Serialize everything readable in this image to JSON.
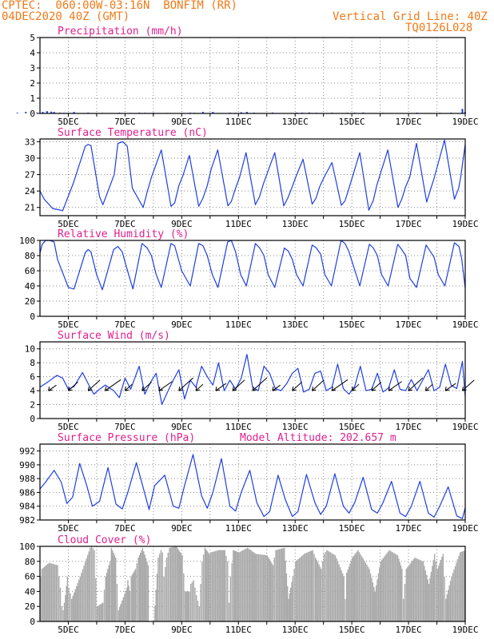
{
  "header": {
    "line1_left": "CPTEC:  060:00W-03:16N  BONFIM (RR)",
    "line2_left": "04DEC2020 40Z (GMT)",
    "line1_right": "Vertical Grid Line: 40Z",
    "line2_right": "TQ0126L028"
  },
  "colors": {
    "header": "#f07a18",
    "panel_title": "#e0208c",
    "series": "#1f3fe0",
    "cloud_fill": "#a9a9a9",
    "wind_arrow": "#000000"
  },
  "chart_data": [
    {
      "id": "precip",
      "type": "bar",
      "title": "Precipitation (mm/h)",
      "ylim": [
        0,
        5
      ],
      "yticks": [
        0,
        1,
        2,
        3,
        4,
        5
      ],
      "xticks": [
        "5DEC",
        "7DEC",
        "9DEC",
        "11DEC",
        "13DEC",
        "15DEC",
        "17DEC",
        "19DEC"
      ],
      "series": [
        {
          "x": [
            3.2,
            3.5,
            3.9,
            4.1,
            4.25,
            4.4,
            4.5,
            4.7,
            4.85,
            5.0,
            5.2,
            5.7,
            6.2,
            6.8,
            7.2,
            7.5,
            7.7,
            7.8,
            8.0,
            8.5,
            9.3,
            9.45,
            9.75,
            10.1,
            10.7,
            10.9,
            11.1,
            11.3,
            11.55,
            12.2,
            13.05,
            13.25,
            13.5,
            13.75,
            14.3,
            14.85,
            15.1,
            15.4,
            16.1,
            17.3,
            18.1,
            18.5,
            18.9,
            19.0
          ],
          "values": [
            0.05,
            0.1,
            0.05,
            0.1,
            0.15,
            0.12,
            0.1,
            0.05,
            0.04,
            0.04,
            0.1,
            0.05,
            0.04,
            0.05,
            0.03,
            0.05,
            0.04,
            0.03,
            0.05,
            0.03,
            0.05,
            0.04,
            0.1,
            0.1,
            0.05,
            0.04,
            0.08,
            0.1,
            0.05,
            0.06,
            0.05,
            0.05,
            0.06,
            0.04,
            0.05,
            0.04,
            0.05,
            0.06,
            0.04,
            0.05,
            0.04,
            0.05,
            0.3,
            0.08
          ]
        }
      ]
    },
    {
      "id": "temp",
      "type": "line",
      "title": "Surface Temperature (nC)",
      "ylim": [
        19.5,
        33.5
      ],
      "yticks": [
        21,
        24,
        27,
        30,
        33
      ],
      "xticks": [
        "5DEC",
        "7DEC",
        "9DEC",
        "11DEC",
        "13DEC",
        "15DEC",
        "17DEC",
        "19DEC"
      ],
      "x": [
        4.0,
        4.15,
        4.45,
        4.65,
        4.8,
        5.18,
        5.6,
        5.7,
        5.8,
        6.1,
        6.22,
        6.62,
        6.75,
        6.92,
        7.08,
        7.26,
        7.64,
        7.78,
        7.93,
        8.28,
        8.62,
        8.75,
        8.9,
        9.04,
        9.27,
        9.6,
        9.75,
        9.9,
        10.04,
        10.27,
        10.63,
        10.75,
        10.9,
        11.04,
        11.27,
        11.6,
        11.74,
        11.88,
        12.28,
        12.6,
        12.74,
        12.88,
        13.02,
        13.28,
        13.6,
        13.74,
        13.86,
        14.0,
        14.3,
        14.63,
        14.76,
        14.9,
        15.28,
        15.6,
        15.76,
        15.88,
        16.27,
        16.63,
        16.76,
        16.9,
        17.04,
        17.28,
        17.64,
        17.76,
        17.9,
        18.27,
        18.62,
        18.77,
        18.84,
        19.0
      ],
      "values": [
        24,
        22.5,
        20.8,
        20.6,
        20.4,
        25.5,
        32.2,
        32.5,
        32.3,
        23,
        21.5,
        27,
        32.7,
        33,
        32.2,
        24.5,
        21,
        23.8,
        26.5,
        31.5,
        21.2,
        21.8,
        25,
        26.8,
        30.5,
        21.2,
        22.7,
        25,
        28,
        31.5,
        21.3,
        22.1,
        24.5,
        26.5,
        31,
        21.5,
        22.9,
        25.3,
        31,
        21.3,
        22.7,
        24.5,
        26.5,
        29.8,
        21.6,
        22.7,
        24.7,
        26.3,
        29.2,
        21.4,
        22.2,
        24.5,
        31,
        20.5,
        22.3,
        25,
        31.5,
        21,
        22.5,
        24.8,
        26.5,
        32.7,
        22,
        24,
        26.3,
        33.3,
        22.5,
        24.5,
        26.5,
        32.5
      ]
    },
    {
      "id": "rh",
      "type": "line",
      "title": "Relative Humidity (%)",
      "ylim": [
        0,
        100
      ],
      "yticks": [
        0,
        20,
        40,
        60,
        80,
        100
      ],
      "xticks": [
        "5DEC",
        "7DEC",
        "9DEC",
        "11DEC",
        "13DEC",
        "15DEC",
        "17DEC",
        "19DEC"
      ],
      "x": [
        4.0,
        4.08,
        4.2,
        4.35,
        4.5,
        4.62,
        5.0,
        5.2,
        5.6,
        5.7,
        5.8,
        6.0,
        6.2,
        6.6,
        6.75,
        6.9,
        7.05,
        7.28,
        7.6,
        7.78,
        7.93,
        8.1,
        8.28,
        8.62,
        8.75,
        9.0,
        9.3,
        9.6,
        9.75,
        9.9,
        10.08,
        10.28,
        10.62,
        10.75,
        10.9,
        11.08,
        11.28,
        11.6,
        11.75,
        11.9,
        12.05,
        12.28,
        12.62,
        12.76,
        12.9,
        13.05,
        13.28,
        13.6,
        13.75,
        13.9,
        14.05,
        14.28,
        14.62,
        14.76,
        14.9,
        15.28,
        15.62,
        15.76,
        15.9,
        16.05,
        16.28,
        16.62,
        16.76,
        16.9,
        17.05,
        17.28,
        17.62,
        17.76,
        17.9,
        18.05,
        18.28,
        18.62,
        18.78,
        18.88,
        19.0
      ],
      "values": [
        83,
        95,
        100,
        100,
        98,
        75,
        38,
        36,
        84,
        88,
        85,
        55,
        35,
        88,
        92,
        85,
        65,
        36,
        96,
        90,
        80,
        55,
        38,
        96,
        93,
        60,
        40,
        96,
        93,
        80,
        55,
        38,
        98,
        100,
        85,
        55,
        40,
        96,
        90,
        80,
        55,
        38,
        90,
        86,
        75,
        55,
        40,
        94,
        90,
        82,
        55,
        40,
        100,
        96,
        85,
        40,
        95,
        90,
        80,
        55,
        40,
        95,
        88,
        80,
        50,
        38,
        94,
        86,
        78,
        55,
        40,
        97,
        92,
        75,
        37
      ]
    },
    {
      "id": "wind",
      "type": "line",
      "title": "Surface Wind (m/s)",
      "ylim": [
        0,
        11
      ],
      "yticks": [
        0,
        2,
        4,
        6,
        8,
        10
      ],
      "xticks": [
        "5DEC",
        "7DEC",
        "9DEC",
        "11DEC",
        "13DEC",
        "15DEC",
        "17DEC",
        "19DEC"
      ],
      "x": [
        4.0,
        4.3,
        4.6,
        4.8,
        5.0,
        5.2,
        5.5,
        5.7,
        5.9,
        6.1,
        6.3,
        6.6,
        6.8,
        7.0,
        7.2,
        7.5,
        7.7,
        7.9,
        8.1,
        8.3,
        8.5,
        8.7,
        8.9,
        9.1,
        9.3,
        9.5,
        9.7,
        9.9,
        10.1,
        10.3,
        10.5,
        10.7,
        10.9,
        11.1,
        11.3,
        11.5,
        11.7,
        11.9,
        12.1,
        12.3,
        12.5,
        12.7,
        12.9,
        13.1,
        13.3,
        13.5,
        13.7,
        13.9,
        14.1,
        14.3,
        14.5,
        14.7,
        14.9,
        15.1,
        15.3,
        15.5,
        15.7,
        15.9,
        16.1,
        16.3,
        16.5,
        16.7,
        16.9,
        17.1,
        17.3,
        17.5,
        17.7,
        17.9,
        18.1,
        18.3,
        18.5,
        18.7,
        18.9,
        19.0
      ],
      "values": [
        4.5,
        5.3,
        6.2,
        5.8,
        4.2,
        4.6,
        6.6,
        5.0,
        3.5,
        4.2,
        4.8,
        4.0,
        3.0,
        5.8,
        4.2,
        7.5,
        3.5,
        5.2,
        6.5,
        2.0,
        3.8,
        5.5,
        7.0,
        2.8,
        5.5,
        4.5,
        7.5,
        6.0,
        4.8,
        8.0,
        4.0,
        5.5,
        4.2,
        5.8,
        9.2,
        4.5,
        4.0,
        7.5,
        6.5,
        4.3,
        4.0,
        5.0,
        6.5,
        7.2,
        3.8,
        4.2,
        6.5,
        6.8,
        4.0,
        4.5,
        7.8,
        4.3,
        3.5,
        4.6,
        7.5,
        4.0,
        4.2,
        6.5,
        3.8,
        4.4,
        7.0,
        4.2,
        4.0,
        5.6,
        4.0,
        5.5,
        7.0,
        4.0,
        4.5,
        7.8,
        4.8,
        4.3,
        8.2,
        3.2
      ]
    },
    {
      "id": "pres",
      "type": "line",
      "title": "Surface Pressure (hPa)",
      "annotation": "Model Altitude: 202.657 m",
      "ylim": [
        982,
        993
      ],
      "yticks": [
        982,
        984,
        986,
        988,
        990,
        992
      ],
      "xticks": [
        "5DEC",
        "7DEC",
        "9DEC",
        "11DEC",
        "13DEC",
        "15DEC",
        "17DEC",
        "19DEC"
      ],
      "x": [
        4.0,
        4.2,
        4.5,
        4.75,
        4.95,
        5.15,
        5.4,
        5.65,
        5.85,
        6.1,
        6.4,
        6.68,
        6.9,
        7.1,
        7.4,
        7.7,
        7.85,
        8.05,
        8.4,
        8.7,
        8.9,
        9.1,
        9.4,
        9.7,
        9.9,
        10.1,
        10.4,
        10.7,
        10.9,
        11.1,
        11.4,
        11.65,
        11.9,
        12.1,
        12.4,
        12.65,
        12.9,
        13.1,
        13.4,
        13.7,
        13.9,
        14.1,
        14.4,
        14.7,
        14.9,
        15.1,
        15.4,
        15.7,
        15.9,
        16.1,
        16.4,
        16.7,
        16.9,
        17.1,
        17.4,
        17.7,
        17.9,
        18.1,
        18.4,
        18.7,
        18.9,
        19.0
      ],
      "values": [
        986.5,
        987.5,
        989.2,
        987.5,
        984.4,
        985.3,
        990.2,
        987.0,
        984.0,
        984.7,
        989.6,
        984.3,
        983.6,
        986.0,
        990.3,
        985.8,
        983.5,
        987.0,
        988.5,
        984.0,
        983.7,
        987.0,
        991.5,
        985.5,
        983.7,
        986.0,
        990.9,
        984.0,
        983.3,
        986.0,
        989.2,
        984.5,
        982.5,
        983.2,
        988.5,
        985.0,
        982.5,
        983.2,
        988.6,
        984.5,
        982.8,
        984.0,
        988.7,
        984.0,
        983.0,
        984.5,
        988.2,
        983.5,
        983.0,
        984.5,
        987.6,
        983.0,
        982.5,
        984.0,
        987.6,
        983.0,
        982.4,
        984.0,
        986.8,
        982.6,
        982.2,
        983.8
      ]
    },
    {
      "id": "cloud",
      "type": "area",
      "title": "Cloud Cover (%)",
      "ylim": [
        0,
        100
      ],
      "yticks": [
        0,
        20,
        40,
        60,
        80,
        100
      ],
      "xticks": [
        "5DEC",
        "7DEC",
        "9DEC",
        "11DEC",
        "13DEC",
        "15DEC",
        "17DEC",
        "19DEC"
      ],
      "x": [
        4.0,
        4.05,
        4.3,
        4.6,
        4.7,
        4.75,
        4.8,
        4.88,
        4.95,
        5.0,
        5.1,
        5.4,
        5.75,
        5.8,
        5.9,
        6.0,
        6.2,
        6.3,
        6.45,
        6.5,
        6.65,
        6.75,
        7.05,
        7.08,
        7.15,
        7.2,
        7.35,
        7.45,
        7.6,
        7.8,
        7.85,
        8.0,
        8.15,
        8.25,
        8.3,
        8.35,
        8.45,
        8.55,
        8.8,
        9.0,
        9.1,
        9.25,
        9.3,
        9.4,
        9.5,
        9.6,
        9.7,
        9.8,
        9.95,
        10.0,
        10.3,
        10.5,
        10.6,
        10.65,
        10.7,
        10.8,
        11.0,
        11.3,
        11.6,
        12.0,
        12.2,
        12.3,
        12.6,
        12.75,
        12.9,
        13.0,
        13.3,
        13.6,
        13.7,
        13.9,
        14.0,
        14.1,
        14.4,
        14.7,
        14.75,
        14.8,
        15.0,
        15.2,
        15.6,
        15.8,
        16.0,
        16.3,
        16.6,
        16.75,
        16.8,
        16.9,
        17.2,
        17.5,
        17.7,
        17.9,
        18.0,
        18.2,
        18.3,
        18.5,
        18.8,
        19.0
      ],
      "values": [
        60,
        70,
        78,
        75,
        45,
        20,
        15,
        35,
        60,
        45,
        30,
        60,
        98,
        100,
        95,
        20,
        25,
        60,
        80,
        98,
        85,
        15,
        45,
        55,
        40,
        60,
        70,
        85,
        98,
        75,
        0,
        0,
        85,
        95,
        92,
        60,
        85,
        98,
        100,
        88,
        40,
        40,
        50,
        55,
        35,
        20,
        80,
        98,
        90,
        92,
        95,
        95,
        80,
        25,
        60,
        95,
        92,
        98,
        90,
        88,
        75,
        95,
        98,
        30,
        60,
        80,
        90,
        95,
        85,
        70,
        90,
        95,
        88,
        60,
        30,
        65,
        85,
        95,
        70,
        40,
        80,
        95,
        88,
        70,
        30,
        70,
        85,
        80,
        50,
        90,
        70,
        90,
        30,
        60,
        92,
        95
      ]
    }
  ]
}
